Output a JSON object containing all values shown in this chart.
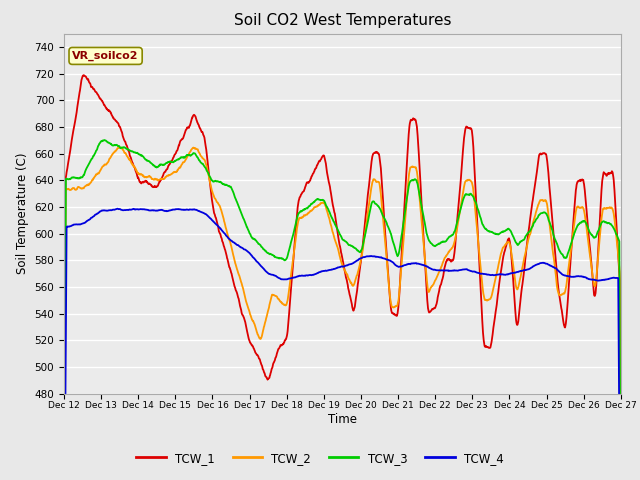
{
  "title": "Soil CO2 West Temperatures",
  "xlabel": "Time",
  "ylabel": "Soil Temperature (C)",
  "annotation": "VR_soilco2",
  "ylim": [
    480,
    750
  ],
  "yticks": [
    480,
    500,
    520,
    540,
    560,
    580,
    600,
    620,
    640,
    660,
    680,
    700,
    720,
    740
  ],
  "colors": {
    "TCW_1": "#dd0000",
    "TCW_2": "#ff9900",
    "TCW_3": "#00cc00",
    "TCW_4": "#0000dd"
  },
  "fig_facecolor": "#e8e8e8",
  "ax_facecolor": "#ebebeb",
  "xtick_labels": [
    "Dec 12",
    "Dec 13",
    "Dec 14",
    "Dec 15",
    "Dec 16",
    "Dec 17",
    "Dec 18",
    "Dec 19",
    "Dec 20",
    "Dec 21",
    "Dec 22",
    "Dec 23",
    "Dec 24",
    "Dec 25",
    "Dec 26",
    "Dec 27"
  ]
}
